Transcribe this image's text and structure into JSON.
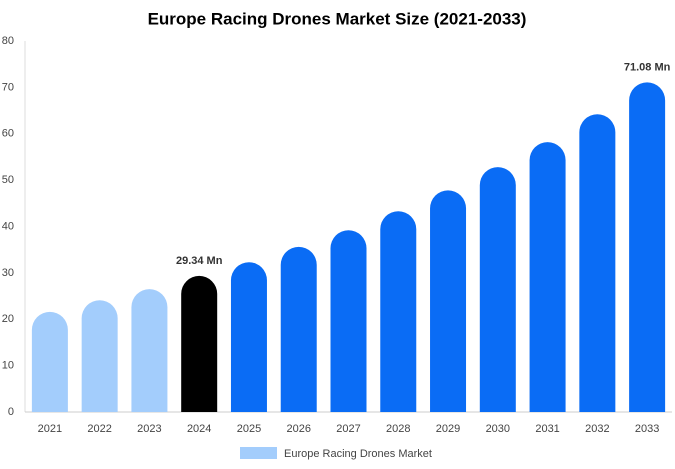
{
  "chart_data": {
    "type": "bar",
    "title": "Europe Racing Drones Market Size (2021-2033)",
    "categories": [
      "2021",
      "2022",
      "2023",
      "2024",
      "2025",
      "2026",
      "2027",
      "2028",
      "2029",
      "2030",
      "2031",
      "2032",
      "2033"
    ],
    "series": [
      {
        "name": "Europe Racing Drones Market",
        "color": "#a3cdfc",
        "values": [
          21.6,
          24.1,
          26.5,
          29.34,
          32.3,
          35.6,
          39.2,
          43.3,
          47.8,
          52.8,
          58.2,
          64.2,
          71.08
        ],
        "value_labels": [
          null,
          null,
          null,
          "29.34 Mn",
          null,
          null,
          null,
          null,
          null,
          null,
          null,
          null,
          "71.08 Mn"
        ],
        "colors": [
          "#a3cdfc",
          "#a3cdfc",
          "#a3cdfc",
          "#000000",
          "#0a6cf5",
          "#0a6cf5",
          "#0a6cf5",
          "#0a6cf5",
          "#0a6cf5",
          "#0a6cf5",
          "#0a6cf5",
          "#0a6cf5",
          "#0a6cf5"
        ]
      }
    ],
    "ylim": [
      0,
      80
    ],
    "yticks": [
      0,
      10,
      20,
      30,
      40,
      50,
      60,
      70,
      80
    ],
    "grid": false
  }
}
